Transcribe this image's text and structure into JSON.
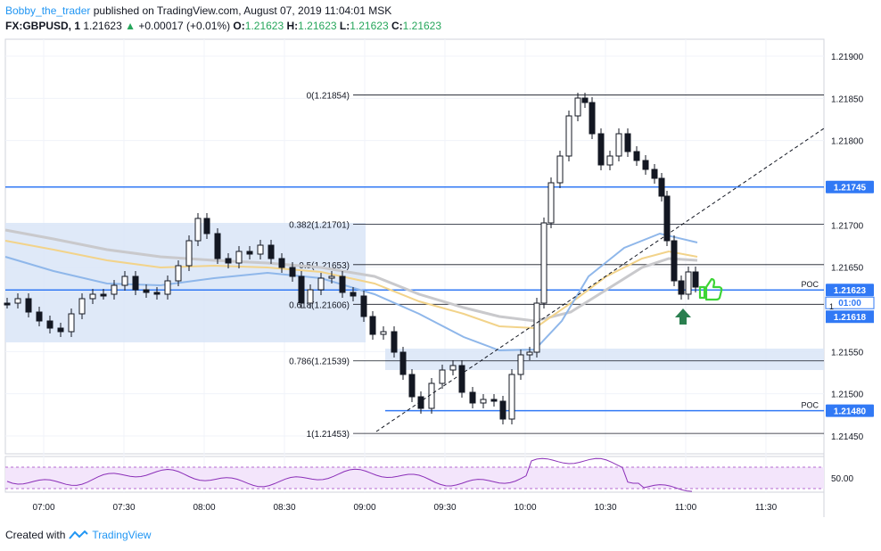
{
  "header": {
    "author": "Bobby_the_trader",
    "published": "published on TradingView.com, August 07, 2019 11:04:01 MSK",
    "symbol": "FX:GBPUSD, 1",
    "last": "1.21623",
    "change": "+0.00017 (+0.01%)",
    "o_label": "O:",
    "o": "1.21623",
    "h_label": "H:",
    "h": "1.21623",
    "l_label": "L:",
    "l": "1.21623",
    "c_label": "C:",
    "c": "1.21623"
  },
  "footer": {
    "created_with": "Created with",
    "brand": "TradingView"
  },
  "colors": {
    "up": "#26a65b",
    "blue_line": "#3179f5",
    "box": "#dbe7f7",
    "rsi": "#f3e5fb"
  },
  "chart_data": {
    "type": "candlestick",
    "y_axis": {
      "min": 1.2141,
      "max": 1.2194,
      "ticks": [
        "1.21900",
        "1.21850",
        "1.21800",
        "1.21700",
        "1.21650",
        "1.21550",
        "1.21500",
        "1.21450"
      ]
    },
    "x_axis": {
      "ticks": [
        "07:00",
        "07:30",
        "08:00",
        "08:30",
        "09:00",
        "09:30",
        "10:00",
        "10:30",
        "11:00",
        "11:30"
      ]
    },
    "fib_levels": [
      {
        "label": "0(1.21854)",
        "price": 1.21854
      },
      {
        "label": "0.382(1.21701)",
        "price": 1.21701
      },
      {
        "label": "0.5(1.21653)",
        "price": 1.21653
      },
      {
        "label": "0.618(1.21606)",
        "price": 1.21606
      },
      {
        "label": "0.786(1.21539)",
        "price": 1.21539
      },
      {
        "label": "1(1.21453)",
        "price": 1.21453
      }
    ],
    "horizontal_levels": [
      {
        "price": 1.21745,
        "label": "1.21745"
      },
      {
        "price": 1.21623,
        "label": "1.21623",
        "poc": "POC"
      },
      {
        "price": 1.2148,
        "label": "1.21480",
        "poc": "POC"
      }
    ],
    "price_tags": {
      "current": "1.21623",
      "countdown": "01:00",
      "low": "1.21618",
      "last_small": "1"
    },
    "rsi_tick": "50.00"
  }
}
